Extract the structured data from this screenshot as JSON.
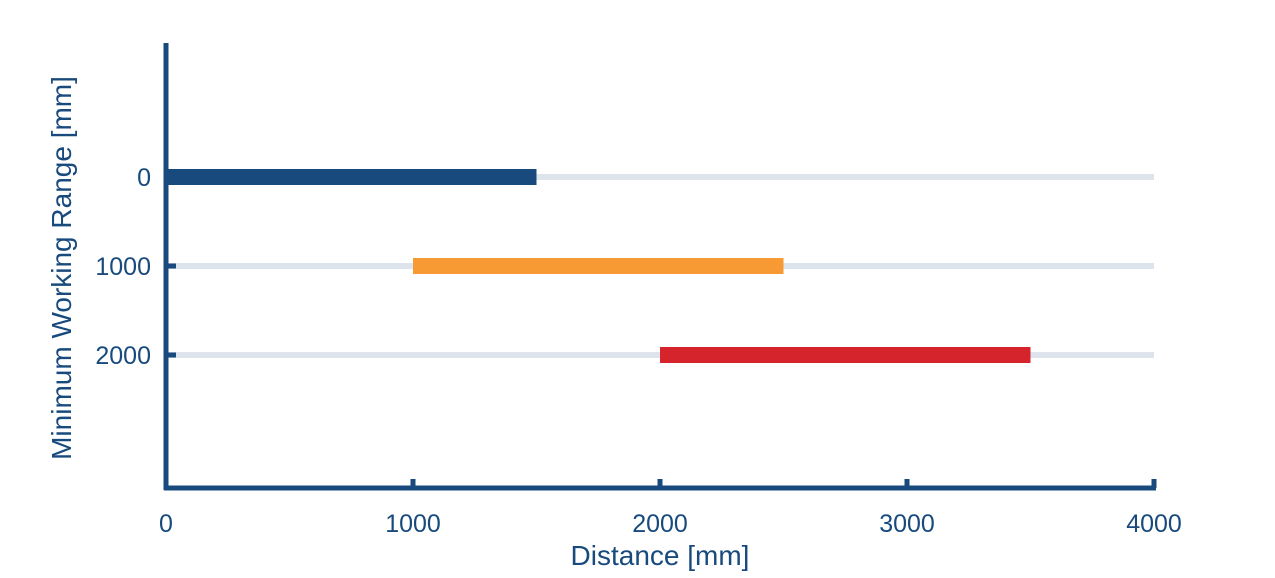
{
  "colors": {
    "axis": "#184a7e",
    "track": "#dde4ec",
    "text": "#184a7e"
  },
  "chart_data": {
    "type": "bar",
    "orientation": "horizontal-range",
    "xlabel": "Distance [mm]",
    "ylabel": "Minimum Working Range [mm]",
    "xlim": [
      0,
      4000
    ],
    "x_ticks": [
      "0",
      "1000",
      "2000",
      "3000",
      "4000"
    ],
    "categories": [
      "0",
      "1000",
      "2000"
    ],
    "series": [
      {
        "category": "0",
        "start": 0,
        "end": 1500,
        "color": "#184a7e"
      },
      {
        "category": "1000",
        "start": 1000,
        "end": 2500,
        "color": "#f79a33"
      },
      {
        "category": "2000",
        "start": 2000,
        "end": 3500,
        "color": "#d5242b"
      }
    ],
    "grid": false,
    "legend": "none"
  }
}
